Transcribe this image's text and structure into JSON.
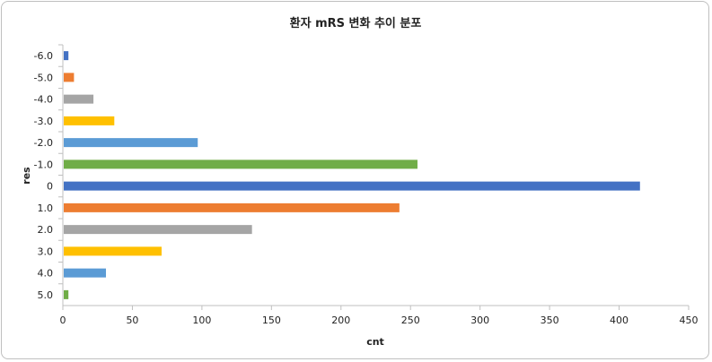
{
  "chart_data": {
    "type": "bar",
    "orientation": "horizontal",
    "title": "환자 mRS 변화 추이 분포",
    "xlabel": "cnt",
    "ylabel": "res",
    "xlim": [
      0,
      450
    ],
    "x_ticks": [
      "0",
      "50",
      "100",
      "150",
      "200",
      "250",
      "300",
      "350",
      "400",
      "450"
    ],
    "grid": false,
    "legend": "none",
    "categories": [
      "-6.0",
      "-5.0",
      "-4.0",
      "-3.0",
      "-2.0",
      "-1.0",
      "0",
      "1.0",
      "2.0",
      "3.0",
      "4.0",
      "5.0"
    ],
    "values": [
      4,
      8,
      22,
      37,
      97,
      255,
      415,
      242,
      136,
      71,
      31,
      4
    ],
    "colors": [
      "#4472c4",
      "#ed7d31",
      "#a5a5a5",
      "#ffc000",
      "#5b9bd5",
      "#70ad47",
      "#4472c4",
      "#ed7d31",
      "#a5a5a5",
      "#ffc000",
      "#5b9bd5",
      "#70ad47"
    ],
    "colors_dark_top": [
      "#3c64ad",
      "#c8692a",
      "#8a8a8a",
      "#d4a000",
      "#4f81ab",
      "#5e913b"
    ]
  }
}
